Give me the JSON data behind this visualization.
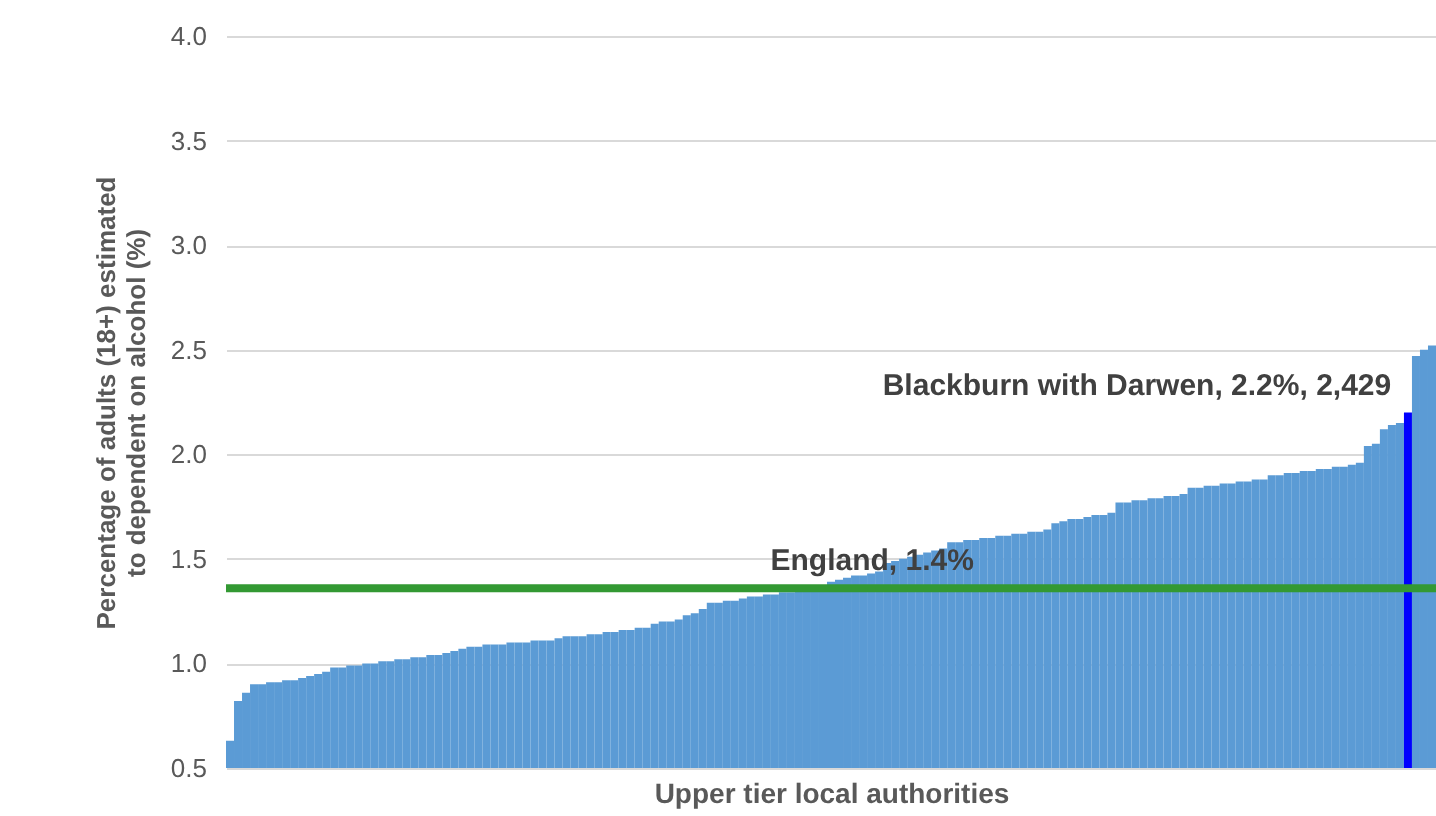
{
  "chart_data": {
    "type": "bar",
    "xlabel": "Upper tier local authorities",
    "ylabel": "Percentage of adults (18+) estimated to dependent on alcohol (%)",
    "categories": [
      null,
      null,
      null,
      null,
      null,
      null,
      null,
      null,
      null,
      null,
      null,
      null,
      null,
      null,
      null,
      null,
      null,
      null,
      null,
      null,
      null,
      null,
      null,
      null,
      null,
      null,
      null,
      null,
      null,
      null,
      null,
      null,
      null,
      null,
      null,
      null,
      null,
      null,
      null,
      null,
      null,
      null,
      null,
      null,
      null,
      null,
      null,
      null,
      null,
      null,
      null,
      null,
      null,
      null,
      null,
      null,
      null,
      null,
      null,
      null,
      null,
      null,
      null,
      null,
      null,
      null,
      null,
      null,
      null,
      null,
      null,
      null,
      null,
      null,
      null,
      null,
      null,
      null,
      null,
      null,
      null,
      null,
      null,
      null,
      null,
      null,
      null,
      null,
      null,
      null,
      null,
      null,
      null,
      null,
      null,
      null,
      null,
      null,
      null,
      null,
      null,
      null,
      null,
      null,
      null,
      null,
      null,
      null,
      null,
      null,
      null,
      null,
      null,
      null,
      null,
      null,
      null,
      null,
      null,
      null,
      null,
      null,
      null,
      null,
      null,
      null,
      null,
      null,
      null,
      null,
      null,
      null,
      null,
      null,
      null,
      null,
      null,
      null,
      null,
      null,
      null,
      null,
      null,
      null,
      null,
      null,
      null,
      null,
      null,
      null,
      null
    ],
    "values": [
      0.63,
      0.82,
      0.86,
      0.9,
      0.9,
      0.91,
      0.91,
      0.92,
      0.92,
      0.93,
      0.94,
      0.95,
      0.96,
      0.98,
      0.98,
      0.99,
      0.99,
      1.0,
      1.0,
      1.01,
      1.01,
      1.02,
      1.02,
      1.03,
      1.03,
      1.04,
      1.04,
      1.05,
      1.06,
      1.07,
      1.08,
      1.08,
      1.09,
      1.09,
      1.09,
      1.1,
      1.1,
      1.1,
      1.11,
      1.11,
      1.11,
      1.12,
      1.13,
      1.13,
      1.13,
      1.14,
      1.14,
      1.15,
      1.15,
      1.16,
      1.16,
      1.17,
      1.17,
      1.19,
      1.2,
      1.2,
      1.21,
      1.23,
      1.24,
      1.26,
      1.29,
      1.29,
      1.3,
      1.3,
      1.31,
      1.32,
      1.32,
      1.33,
      1.33,
      1.34,
      1.34,
      1.35,
      1.35,
      1.36,
      1.36,
      1.39,
      1.4,
      1.41,
      1.42,
      1.42,
      1.43,
      1.44,
      1.48,
      1.49,
      1.5,
      1.51,
      1.52,
      1.53,
      1.54,
      1.55,
      1.58,
      1.58,
      1.59,
      1.59,
      1.6,
      1.6,
      1.61,
      1.61,
      1.62,
      1.62,
      1.63,
      1.63,
      1.64,
      1.67,
      1.68,
      1.69,
      1.69,
      1.7,
      1.71,
      1.71,
      1.72,
      1.77,
      1.77,
      1.78,
      1.78,
      1.79,
      1.79,
      1.8,
      1.8,
      1.81,
      1.84,
      1.84,
      1.85,
      1.85,
      1.86,
      1.86,
      1.87,
      1.87,
      1.88,
      1.88,
      1.9,
      1.9,
      1.91,
      1.91,
      1.92,
      1.92,
      1.93,
      1.93,
      1.94,
      1.94,
      1.95,
      1.96,
      2.04,
      2.05,
      2.12,
      2.14,
      2.15,
      2.2,
      2.47,
      2.5,
      2.52
    ],
    "colors": [
      "#5b9bd5",
      "#5b9bd5",
      "#5b9bd5",
      "#5b9bd5",
      "#5b9bd5",
      "#5b9bd5",
      "#5b9bd5",
      "#5b9bd5",
      "#5b9bd5",
      "#5b9bd5",
      "#5b9bd5",
      "#5b9bd5",
      "#5b9bd5",
      "#5b9bd5",
      "#5b9bd5",
      "#5b9bd5",
      "#5b9bd5",
      "#5b9bd5",
      "#5b9bd5",
      "#5b9bd5",
      "#5b9bd5",
      "#5b9bd5",
      "#5b9bd5",
      "#5b9bd5",
      "#5b9bd5",
      "#5b9bd5",
      "#5b9bd5",
      "#5b9bd5",
      "#5b9bd5",
      "#5b9bd5",
      "#5b9bd5",
      "#5b9bd5",
      "#5b9bd5",
      "#5b9bd5",
      "#5b9bd5",
      "#5b9bd5",
      "#5b9bd5",
      "#5b9bd5",
      "#5b9bd5",
      "#5b9bd5",
      "#5b9bd5",
      "#5b9bd5",
      "#5b9bd5",
      "#5b9bd5",
      "#5b9bd5",
      "#5b9bd5",
      "#5b9bd5",
      "#5b9bd5",
      "#5b9bd5",
      "#5b9bd5",
      "#5b9bd5",
      "#5b9bd5",
      "#5b9bd5",
      "#5b9bd5",
      "#5b9bd5",
      "#5b9bd5",
      "#5b9bd5",
      "#5b9bd5",
      "#5b9bd5",
      "#5b9bd5",
      "#5b9bd5",
      "#5b9bd5",
      "#5b9bd5",
      "#5b9bd5",
      "#5b9bd5",
      "#5b9bd5",
      "#5b9bd5",
      "#5b9bd5",
      "#5b9bd5",
      "#5b9bd5",
      "#5b9bd5",
      "#5b9bd5",
      "#5b9bd5",
      "#5b9bd5",
      "#5b9bd5",
      "#5b9bd5",
      "#5b9bd5",
      "#5b9bd5",
      "#5b9bd5",
      "#5b9bd5",
      "#5b9bd5",
      "#5b9bd5",
      "#5b9bd5",
      "#5b9bd5",
      "#5b9bd5",
      "#5b9bd5",
      "#5b9bd5",
      "#5b9bd5",
      "#5b9bd5",
      "#5b9bd5",
      "#5b9bd5",
      "#5b9bd5",
      "#5b9bd5",
      "#5b9bd5",
      "#5b9bd5",
      "#5b9bd5",
      "#5b9bd5",
      "#5b9bd5",
      "#5b9bd5",
      "#5b9bd5",
      "#5b9bd5",
      "#5b9bd5",
      "#5b9bd5",
      "#5b9bd5",
      "#5b9bd5",
      "#5b9bd5",
      "#5b9bd5",
      "#5b9bd5",
      "#5b9bd5",
      "#5b9bd5",
      "#5b9bd5",
      "#5b9bd5",
      "#5b9bd5",
      "#5b9bd5",
      "#5b9bd5",
      "#5b9bd5",
      "#5b9bd5",
      "#5b9bd5",
      "#5b9bd5",
      "#5b9bd5",
      "#5b9bd5",
      "#5b9bd5",
      "#5b9bd5",
      "#5b9bd5",
      "#5b9bd5",
      "#5b9bd5",
      "#5b9bd5",
      "#5b9bd5",
      "#5b9bd5",
      "#5b9bd5",
      "#5b9bd5",
      "#5b9bd5",
      "#5b9bd5",
      "#5b9bd5",
      "#5b9bd5",
      "#5b9bd5",
      "#5b9bd5",
      "#5b9bd5",
      "#5b9bd5",
      "#5b9bd5",
      "#5b9bd5",
      "#5b9bd5",
      "#5b9bd5",
      "#5b9bd5",
      "#5b9bd5",
      "#5b9bd5",
      "#5b9bd5",
      "#0000ff",
      "#5b9bd5",
      "#5b9bd5",
      "#5b9bd5"
    ],
    "ylim": [
      0.5,
      4.0
    ],
    "yticks": [
      {
        "value": 0.5,
        "label": "0.5"
      },
      {
        "value": 1.0,
        "label": "1.0"
      },
      {
        "value": 1.5,
        "label": "1.5"
      },
      {
        "value": 2.0,
        "label": "2.0"
      },
      {
        "value": 2.5,
        "label": "2.5"
      },
      {
        "value": 3.0,
        "label": "3.0"
      },
      {
        "value": 3.5,
        "label": "3.5"
      },
      {
        "value": 4.0,
        "label": "4.0"
      }
    ],
    "grid": "y",
    "tick_labels": "y",
    "ref_lines": [
      {
        "axis": "y",
        "value": 1.36,
        "label": "England, 1.4%",
        "color": "#339933"
      }
    ],
    "annotations": [
      "Blackburn with Darwen, 2.2%, 2,429"
    ]
  }
}
